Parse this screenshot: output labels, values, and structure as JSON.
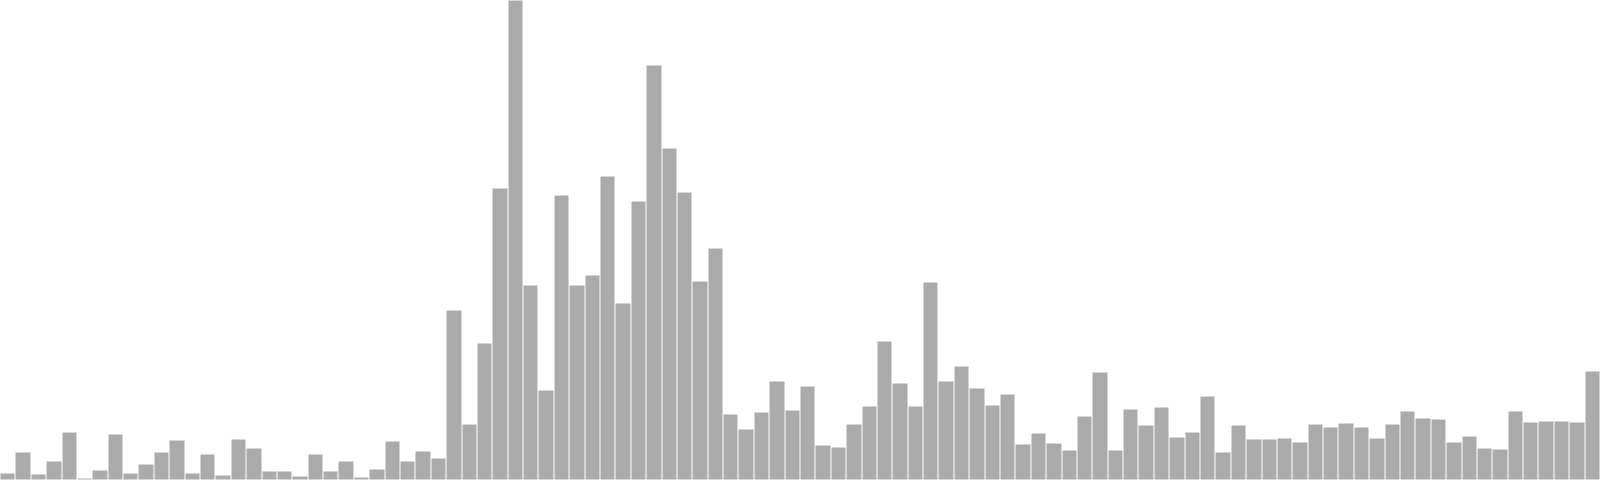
{
  "chart_data": {
    "type": "bar",
    "title": "",
    "xlabel": "",
    "ylabel": "",
    "ylim": [
      0,
      480
    ],
    "grid": false,
    "legend": "none",
    "bar_color": "#ababab",
    "background": "#ffffff",
    "values": [
      7,
      28,
      6,
      19,
      48,
      2,
      10,
      46,
      7,
      16,
      28,
      40,
      7,
      26,
      5,
      41,
      32,
      9,
      9,
      4,
      26,
      9,
      19,
      3,
      11,
      39,
      19,
      29,
      22,
      170,
      56,
      137,
      292,
      480,
      195,
      90,
      285,
      195,
      205,
      304,
      177,
      279,
      415,
      332,
      288,
      199,
      232,
      66,
      51,
      68,
      99,
      70,
      94,
      35,
      33,
      56,
      74,
      139,
      97,
      74,
      198,
      99,
      114,
      92,
      75,
      86,
      36,
      47,
      37,
      30,
      64,
      108,
      30,
      71,
      55,
      73,
      43,
      48,
      84,
      28,
      55,
      41,
      41,
      42,
      38,
      56,
      53,
      57,
      53,
      42,
      56,
      69,
      62,
      61,
      38,
      44,
      32,
      31,
      69,
      58,
      59,
      59,
      58,
      109
    ]
  }
}
